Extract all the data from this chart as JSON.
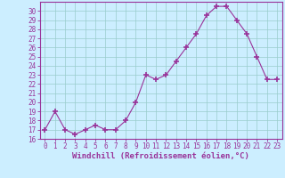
{
  "x": [
    0,
    1,
    2,
    3,
    4,
    5,
    6,
    7,
    8,
    9,
    10,
    11,
    12,
    13,
    14,
    15,
    16,
    17,
    18,
    19,
    20,
    21,
    22,
    23
  ],
  "y": [
    17,
    19,
    17,
    16.5,
    17,
    17.5,
    17,
    17,
    18,
    20,
    23,
    22.5,
    23,
    24.5,
    26,
    27.5,
    29.5,
    30.5,
    30.5,
    29,
    27.5,
    25,
    22.5,
    22.5
  ],
  "line_color": "#993399",
  "marker": "+",
  "marker_size": 4,
  "bg_color": "#cceeff",
  "grid_color": "#99cccc",
  "xlabel": "Windchill (Refroidissement éolien,°C)",
  "ylabel": "",
  "ylim": [
    16,
    31
  ],
  "xlim": [
    -0.5,
    23.5
  ],
  "yticks": [
    16,
    17,
    18,
    19,
    20,
    21,
    22,
    23,
    24,
    25,
    26,
    27,
    28,
    29,
    30
  ],
  "xticks": [
    0,
    1,
    2,
    3,
    4,
    5,
    6,
    7,
    8,
    9,
    10,
    11,
    12,
    13,
    14,
    15,
    16,
    17,
    18,
    19,
    20,
    21,
    22,
    23
  ],
  "tick_label_color": "#993399",
  "axis_color": "#993399",
  "font_size": 5.5,
  "xlabel_font_size": 6.5,
  "marker_color": "#993399"
}
